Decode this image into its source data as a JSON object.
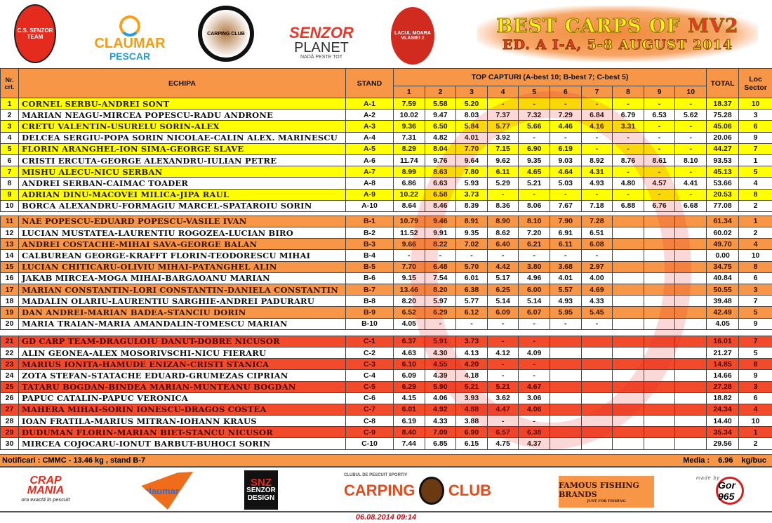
{
  "header": {
    "logos": [
      "C.S. SENZOR TEAM",
      "CLAUMAR PESCAR",
      "CARPING CLUB",
      "SENZOR PLANET",
      "LACUL MOARA VLASIEI 2"
    ],
    "claumar": [
      "CLAUMAR",
      "PESCAR"
    ],
    "senzor": [
      "SENZOR",
      "PLANET",
      "NADĂ PESTE TOT"
    ],
    "title_line1_a": "BEST CARPS OF ",
    "title_line1_b": "MV2",
    "title_line2_a": "ED. A I-A, ",
    "title_line2_b": "5-8 AUGUST 2014"
  },
  "table": {
    "col_nr": "Nr. crt.",
    "col_team": "ECHIPA",
    "col_stand": "STAND",
    "col_top": "TOP CAPTURI (A-best 10; B-best 7; C-best 5)",
    "capture_cols": [
      "1",
      "2",
      "3",
      "4",
      "5",
      "6",
      "7",
      "8",
      "9",
      "10"
    ],
    "col_total": "TOTAL",
    "col_loc": "Loc Sector",
    "sectors": [
      {
        "name": "A",
        "color": "#ffff00",
        "rows": [
          {
            "nr": "1",
            "team": "Cornel Serbu-Andrei Sont",
            "stand": "A-1",
            "c": [
              "7.59",
              "5.58",
              "5.20",
              "-",
              "-",
              "-",
              "-",
              "-",
              "-",
              "-"
            ],
            "total": "18.37",
            "loc": "10"
          },
          {
            "nr": "2",
            "team": "Marian Neagu-Mircea Popescu-Radu Androne",
            "stand": "A-2",
            "c": [
              "10.02",
              "9.47",
              "8.03",
              "7.37",
              "7.32",
              "7.29",
              "6.84",
              "6.79",
              "6.53",
              "5.62"
            ],
            "total": "75.28",
            "loc": "3"
          },
          {
            "nr": "3",
            "team": "Cretu Valentin-Usurelu Sorin-Alex",
            "stand": "A-3",
            "c": [
              "9.36",
              "6.50",
              "5.84",
              "5.77",
              "5.66",
              "4.46",
              "4.16",
              "3.31",
              "-",
              "-"
            ],
            "total": "45.06",
            "loc": "6"
          },
          {
            "nr": "4",
            "team": "Delcea Sergiu-Popa Sorin Nicolae-Calin Alex. Marinescu",
            "stand": "A-4",
            "c": [
              "7.31",
              "4.82",
              "4.01",
              "3.92",
              "-",
              "-",
              "-",
              "-",
              "-",
              "-"
            ],
            "total": "20.06",
            "loc": "9"
          },
          {
            "nr": "5",
            "team": "Florin Aranghel-Ion Sima-George Slave",
            "stand": "A-5",
            "c": [
              "8.29",
              "8.04",
              "7.70",
              "7.15",
              "6.90",
              "6.19",
              "-",
              "-",
              "-",
              "-"
            ],
            "total": "44.27",
            "loc": "7"
          },
          {
            "nr": "6",
            "team": "Cristi Ercuta-George Alexandru-Iulian Petre",
            "stand": "A-6",
            "c": [
              "11.74",
              "9.76",
              "9.64",
              "9.62",
              "9.35",
              "9.03",
              "8.92",
              "8.76",
              "8.61",
              "8.10"
            ],
            "total": "93.53",
            "loc": "1"
          },
          {
            "nr": "7",
            "team": "Mishu Alecu-Nicu Serban",
            "stand": "A-7",
            "c": [
              "8.99",
              "8.63",
              "7.80",
              "6.11",
              "4.65",
              "4.64",
              "4.31",
              "-",
              "-",
              "-"
            ],
            "total": "45.13",
            "loc": "5"
          },
          {
            "nr": "8",
            "team": "Andrei Serban-Caimac Toader",
            "stand": "A-8",
            "c": [
              "6.86",
              "6.63",
              "5.93",
              "5.29",
              "5.21",
              "5.03",
              "4.93",
              "4.80",
              "4.57",
              "4.41"
            ],
            "total": "53.66",
            "loc": "4"
          },
          {
            "nr": "9",
            "team": "Adrian Dinu-Macovei Milica-Jipa Raul",
            "stand": "A-9",
            "c": [
              "10.22",
              "6.58",
              "3.73",
              "-",
              "-",
              "-",
              "-",
              "-",
              "-",
              "-"
            ],
            "total": "20.53",
            "loc": "8"
          },
          {
            "nr": "10",
            "team": "Borca Alexandru-Formagiu Marcel-Spataroiu Sorin",
            "stand": "A-10",
            "c": [
              "8.64",
              "8.46",
              "8.39",
              "8.36",
              "8.06",
              "7.67",
              "7.18",
              "6.88",
              "6.76",
              "6.68"
            ],
            "total": "77.08",
            "loc": "2"
          }
        ]
      },
      {
        "name": "B",
        "color": "#f79646",
        "rows": [
          {
            "nr": "11",
            "team": "Nae Popescu-Eduard Popescu-Vasile Ivan",
            "stand": "B-1",
            "c": [
              "10.79",
              "9.46",
              "8.91",
              "8.90",
              "8.10",
              "7.90",
              "7.28",
              "",
              "",
              ""
            ],
            "total": "61.34",
            "loc": "1"
          },
          {
            "nr": "12",
            "team": "Lucian Mustatea-Laurentiu Rogozea-Lucian Biro",
            "stand": "B-2",
            "c": [
              "11.52",
              "9.91",
              "9.35",
              "8.62",
              "7.20",
              "6.91",
              "6.51",
              "",
              "",
              ""
            ],
            "total": "60.02",
            "loc": "2"
          },
          {
            "nr": "13",
            "team": "Andrei Costache-Mihai Sava-George Balan",
            "stand": "B-3",
            "c": [
              "9.66",
              "8.22",
              "7.02",
              "6.40",
              "6.21",
              "6.11",
              "6.08",
              "",
              "",
              ""
            ],
            "total": "49.70",
            "loc": "4"
          },
          {
            "nr": "14",
            "team": "Calburean George-Krafft Florin-Teodorescu Mihai",
            "stand": "B-4",
            "c": [
              "-",
              "-",
              "-",
              "-",
              "-",
              "-",
              "-",
              "",
              "",
              ""
            ],
            "total": "0.00",
            "loc": "10"
          },
          {
            "nr": "15",
            "team": "Lucian Chiticaru-Oliviu Mihai-Patanghel Alin",
            "stand": "B-5",
            "c": [
              "7.70",
              "6.48",
              "5.70",
              "4.42",
              "3.80",
              "3.68",
              "2.97",
              "",
              "",
              ""
            ],
            "total": "34.75",
            "loc": "8"
          },
          {
            "nr": "16",
            "team": "Jakab Mircea-Moga Mihai-Bargaoanu Marian",
            "stand": "B-6",
            "c": [
              "9.15",
              "7.54",
              "6.01",
              "5.17",
              "4.96",
              "4.01",
              "4.00",
              "",
              "",
              ""
            ],
            "total": "40.84",
            "loc": "6"
          },
          {
            "nr": "17",
            "team": "Marian Constantin-Lori Constantin-Daniela Constantin",
            "stand": "B-7",
            "c": [
              "13.46",
              "8.20",
              "6.38",
              "6.25",
              "6.00",
              "5.57",
              "4.69",
              "",
              "",
              ""
            ],
            "total": "50.55",
            "loc": "3"
          },
          {
            "nr": "18",
            "team": "Madalin Olariu-Laurentiu Sarghie-Andrei Paduraru",
            "stand": "B-8",
            "c": [
              "8.20",
              "5.97",
              "5.77",
              "5.14",
              "5.14",
              "4.93",
              "4.33",
              "",
              "",
              ""
            ],
            "total": "39.48",
            "loc": "7"
          },
          {
            "nr": "19",
            "team": "Dan Andrei-Marian Badea-Stanciu Dorin",
            "stand": "B-9",
            "c": [
              "6.52",
              "6.29",
              "6.12",
              "6.09",
              "6.07",
              "5.95",
              "5.45",
              "",
              "",
              ""
            ],
            "total": "42.49",
            "loc": "5"
          },
          {
            "nr": "20",
            "team": "Maria Traian-Maria Amandalin-Tomescu Marian",
            "stand": "B-10",
            "c": [
              "4.05",
              "-",
              "-",
              "-",
              "-",
              "-",
              "-",
              "",
              "",
              ""
            ],
            "total": "4.05",
            "loc": "9"
          }
        ]
      },
      {
        "name": "C",
        "color": "#f24b2c",
        "rows": [
          {
            "nr": "21",
            "team": "GD Carp Team-Draguloiu Danut-Dobre Nicusor",
            "stand": "C-1",
            "c": [
              "6.37",
              "5.91",
              "3.73",
              "-",
              "-",
              "",
              "",
              "",
              "",
              ""
            ],
            "total": "16.01",
            "loc": "7"
          },
          {
            "nr": "22",
            "team": "Alin Geonea-Alex Mosorivschi-Nicu Fieraru",
            "stand": "C-2",
            "c": [
              "4.63",
              "4.30",
              "4.13",
              "4.12",
              "4.09",
              "",
              "",
              "",
              "",
              ""
            ],
            "total": "21.27",
            "loc": "5"
          },
          {
            "nr": "23",
            "team": "Marius Ionita-Hamude Enizan-Cristi Stanica",
            "stand": "C-3",
            "c": [
              "6.10",
              "4.55",
              "4.20",
              "-",
              "-",
              "",
              "",
              "",
              "",
              ""
            ],
            "total": "14.85",
            "loc": "8"
          },
          {
            "nr": "24",
            "team": "Zota Stefan-Statache Eduard-Grumezas Ciprian",
            "stand": "C-4",
            "c": [
              "6.09",
              "4.39",
              "4.18",
              "-",
              "-",
              "",
              "",
              "",
              "",
              ""
            ],
            "total": "14.66",
            "loc": "9"
          },
          {
            "nr": "25",
            "team": "Tataru Bogdan-Bindea Marian-Munteanu Bogdan",
            "stand": "C-5",
            "c": [
              "6.29",
              "5.90",
              "5.21",
              "5.21",
              "4.67",
              "",
              "",
              "",
              "",
              ""
            ],
            "total": "27.28",
            "loc": "3"
          },
          {
            "nr": "26",
            "team": "Papuc Catalin-Papuc Veronica",
            "stand": "C-6",
            "c": [
              "4.15",
              "4.06",
              "3.93",
              "3.62",
              "3.06",
              "",
              "",
              "",
              "",
              ""
            ],
            "total": "18.82",
            "loc": "6"
          },
          {
            "nr": "27",
            "team": "Mahera Mihai-Sorin Ionescu-Dragos Costea",
            "stand": "C-7",
            "c": [
              "6.01",
              "4.92",
              "4.88",
              "4.47",
              "4.06",
              "",
              "",
              "",
              "",
              ""
            ],
            "total": "24.34",
            "loc": "4"
          },
          {
            "nr": "28",
            "team": "Ioan Fratila-Marius Mitran-Iohann Kraus",
            "stand": "C-8",
            "c": [
              "6.19",
              "4.33",
              "3.88",
              "-",
              "-",
              "",
              "",
              "",
              "",
              ""
            ],
            "total": "14.40",
            "loc": "10"
          },
          {
            "nr": "29",
            "team": "Duduman Florin-Marian Biet-Stancu Nicusor",
            "stand": "C-9",
            "c": [
              "8.40",
              "7.09",
              "6.90",
              "6.57",
              "6.38",
              "",
              "",
              "",
              "",
              ""
            ],
            "total": "35.34",
            "loc": "1"
          },
          {
            "nr": "30",
            "team": "Mircea Cojocaru-Ionut Barbut-Buhoci Sorin",
            "stand": "C-10",
            "c": [
              "7.44",
              "6.85",
              "6.15",
              "4.75",
              "4.37",
              "",
              "",
              "",
              "",
              ""
            ],
            "total": "29.56",
            "loc": "2"
          }
        ]
      }
    ]
  },
  "notes": {
    "text": "Notificari : CMMC -  13.46 kg , stand B-7",
    "media_label": "Media :",
    "media_value": "6.96",
    "media_unit": "kg/buc"
  },
  "footer": {
    "crapmania": [
      "CRAP",
      "MANIA",
      "ora exactă în pescuit"
    ],
    "claumar": "claumar",
    "senzor_design": [
      "SNZ",
      "SENZOR",
      "DESIGN"
    ],
    "carping_pre": "CLUBUL DE PESCUIT SPORTIV",
    "carping_a": "CARPING",
    "carping_b": "CLUB",
    "famous": "FAMOUS FISHING BRANDS",
    "famous_sub": "JUST FOR FISHING",
    "gor": "Gor 965",
    "gor_pre": "made by",
    "date": "06.08.2014 09:14"
  }
}
